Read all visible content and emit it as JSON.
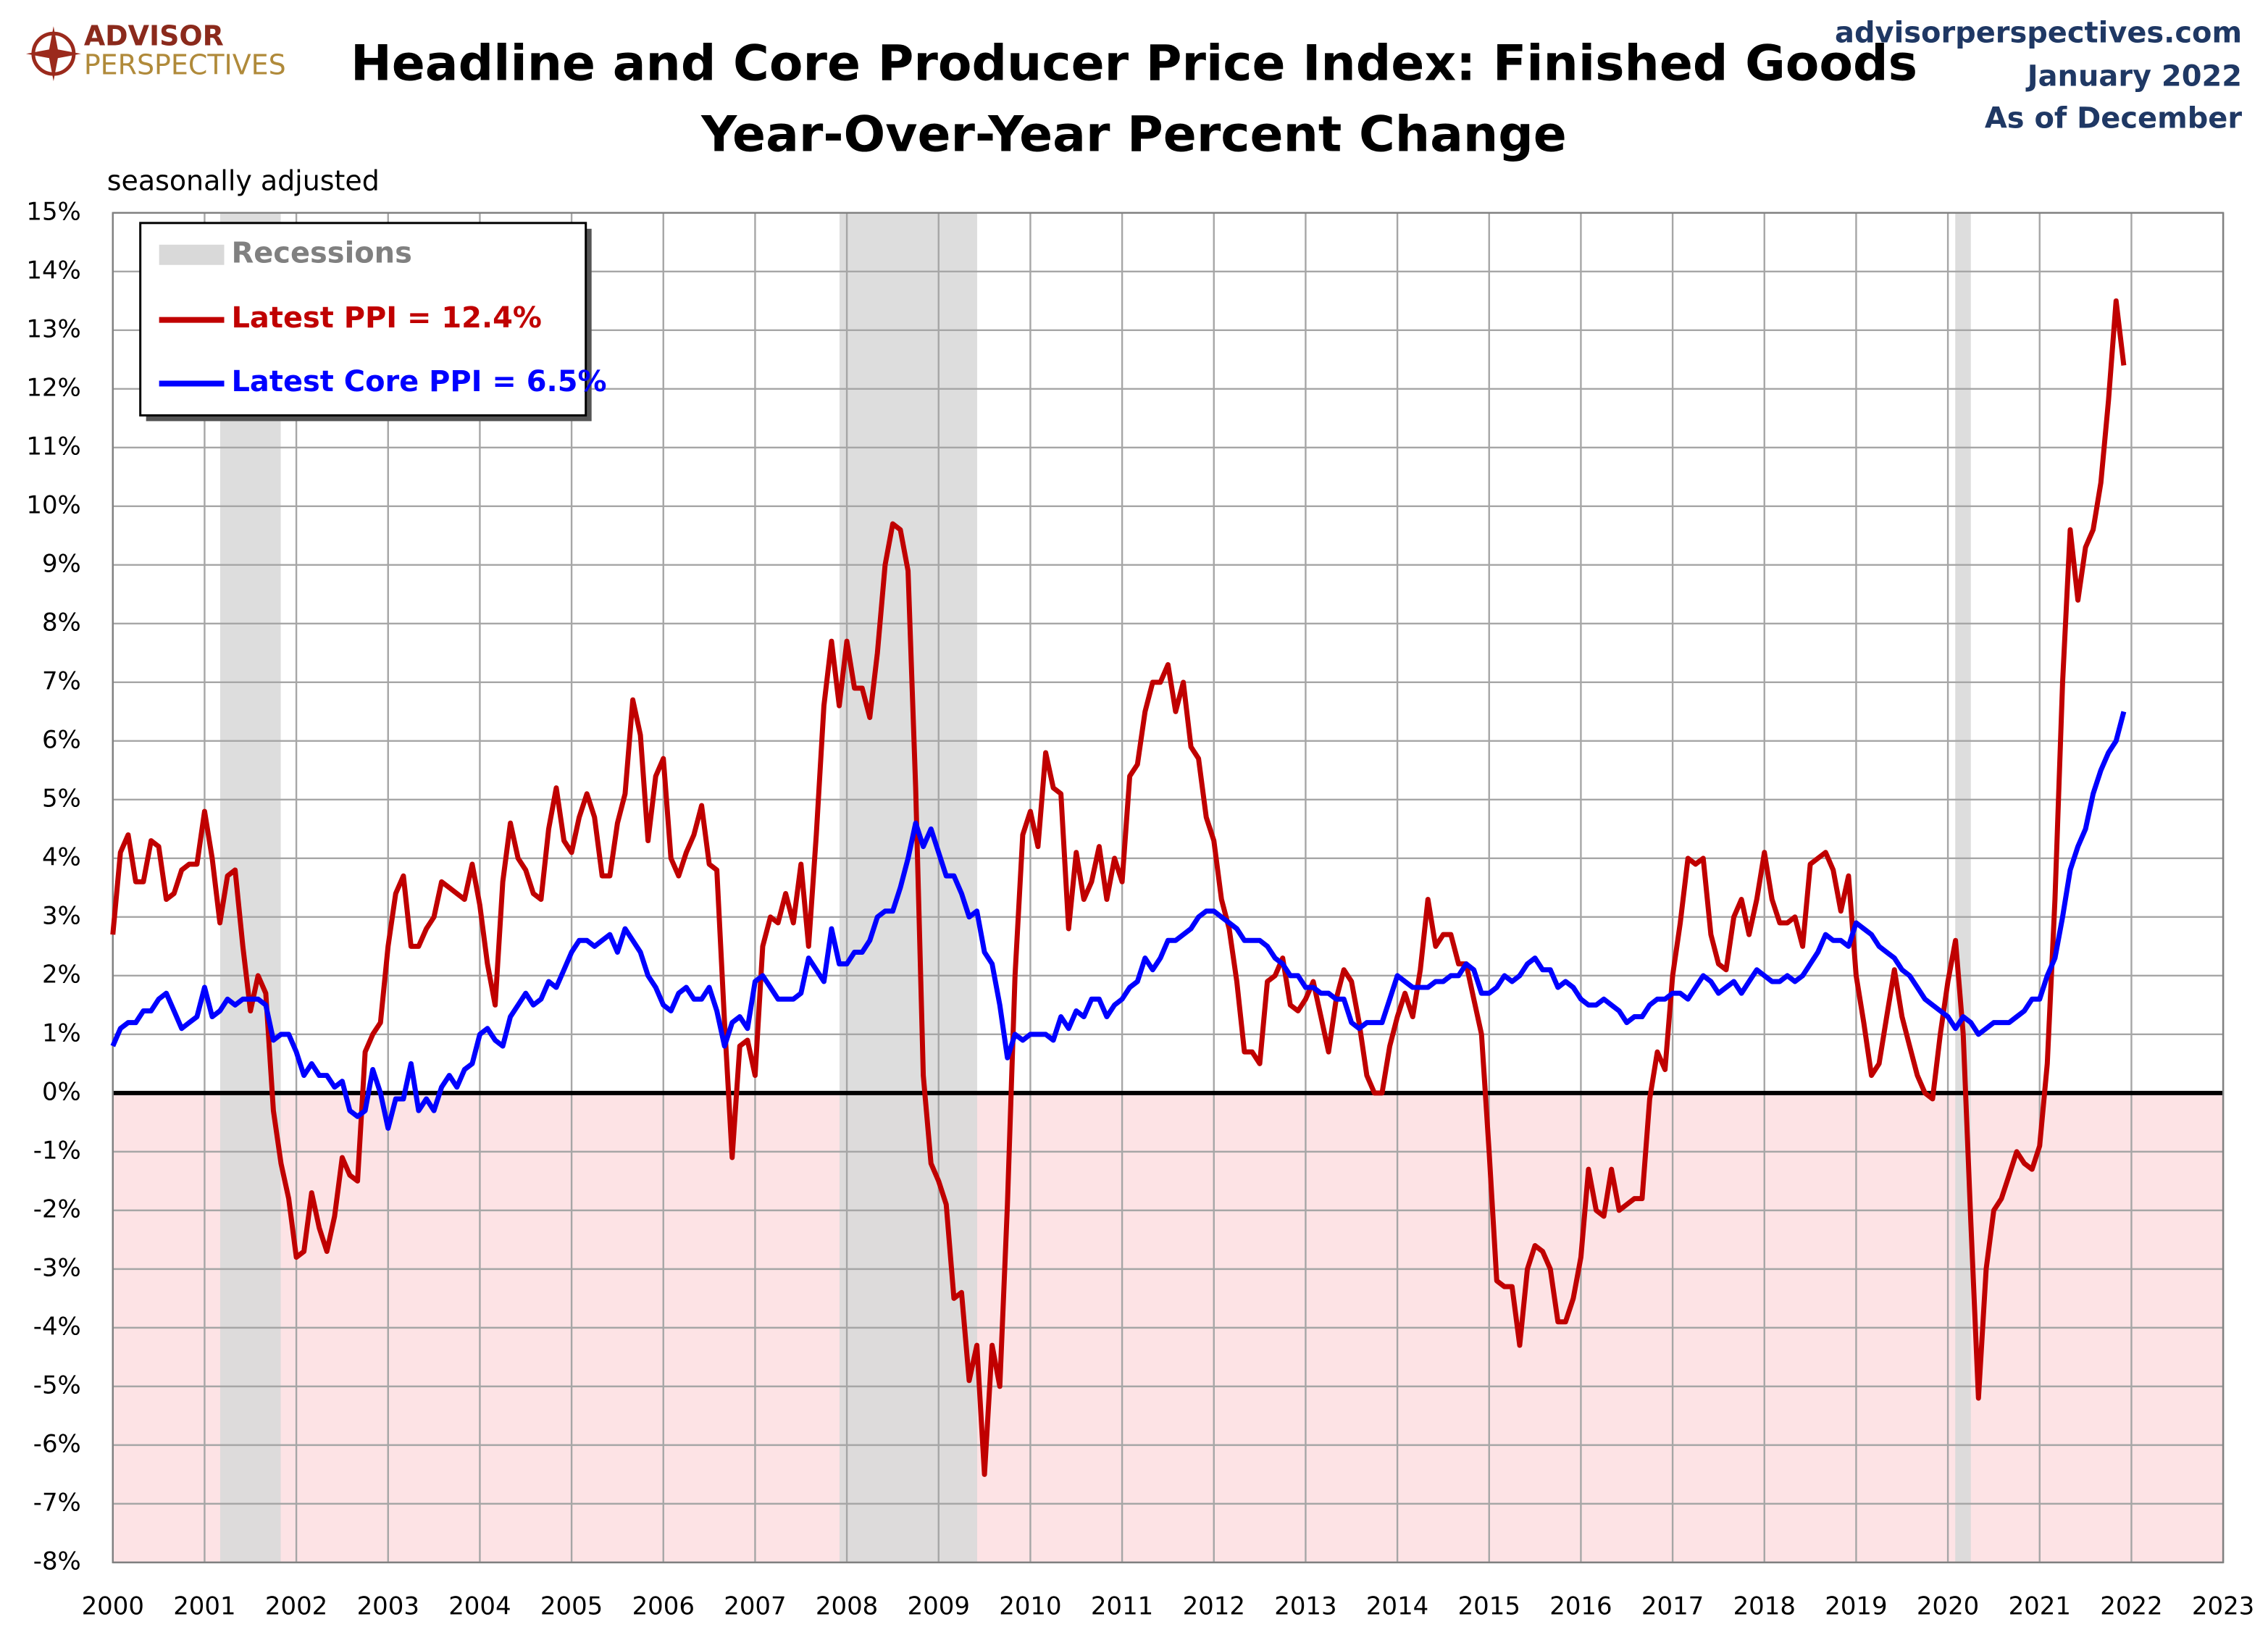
{
  "logo": {
    "line1": "ADVISOR",
    "line2": "PERSPECTIVES"
  },
  "source": [
    "advisorperspectives.com",
    "January 2022",
    "As of December"
  ],
  "chart_data": {
    "type": "line",
    "title": [
      "Headline and Core Producer Price Index: Finished Goods",
      "Year-Over-Year Percent Change"
    ],
    "subtitle": "seasonally adjusted",
    "xlim": [
      2000,
      2023
    ],
    "xticks": [
      2000,
      2001,
      2002,
      2003,
      2004,
      2005,
      2006,
      2007,
      2008,
      2009,
      2010,
      2011,
      2012,
      2013,
      2014,
      2015,
      2016,
      2017,
      2018,
      2019,
      2020,
      2021,
      2022,
      2023
    ],
    "ylim": [
      -8,
      15
    ],
    "yticks": [
      {
        "value": -8,
        "label": "-8%"
      },
      {
        "value": -7,
        "label": "-7%"
      },
      {
        "value": -6,
        "label": "-6%"
      },
      {
        "value": -5,
        "label": "-5%"
      },
      {
        "value": -4,
        "label": "-4%"
      },
      {
        "value": -3,
        "label": "-3%"
      },
      {
        "value": -2,
        "label": "-2%"
      },
      {
        "value": -1,
        "label": "-1%"
      },
      {
        "value": 0,
        "label": "0%"
      },
      {
        "value": 1,
        "label": "1%"
      },
      {
        "value": 2,
        "label": "2%"
      },
      {
        "value": 3,
        "label": "3%"
      },
      {
        "value": 4,
        "label": "4%"
      },
      {
        "value": 5,
        "label": "5%"
      },
      {
        "value": 6,
        "label": "6%"
      },
      {
        "value": 7,
        "label": "7%"
      },
      {
        "value": 8,
        "label": "8%"
      },
      {
        "value": 9,
        "label": "9%"
      },
      {
        "value": 10,
        "label": "10%"
      },
      {
        "value": 11,
        "label": "11%"
      },
      {
        "value": 12,
        "label": "12%"
      },
      {
        "value": 13,
        "label": "13%"
      },
      {
        "value": 14,
        "label": "14%"
      },
      {
        "value": 15,
        "label": "15%"
      }
    ],
    "grid": true,
    "negative_shading_color": "#fde3e5",
    "legend_position": "upper-left",
    "recessions": {
      "name": "Recessions",
      "color": "#d9d9d9",
      "periods": [
        [
          2001.17,
          2001.83
        ],
        [
          2007.92,
          2009.42
        ],
        [
          2020.08,
          2020.25
        ]
      ]
    },
    "x": [
      2000,
      2000.083,
      2000.167,
      2000.25,
      2000.333,
      2000.417,
      2000.5,
      2000.583,
      2000.667,
      2000.75,
      2000.833,
      2000.917,
      2001,
      2001.083,
      2001.167,
      2001.25,
      2001.333,
      2001.417,
      2001.5,
      2001.583,
      2001.667,
      2001.75,
      2001.833,
      2001.917,
      2002,
      2002.083,
      2002.167,
      2002.25,
      2002.333,
      2002.417,
      2002.5,
      2002.583,
      2002.667,
      2002.75,
      2002.833,
      2002.917,
      2003,
      2003.083,
      2003.167,
      2003.25,
      2003.333,
      2003.417,
      2003.5,
      2003.583,
      2003.667,
      2003.75,
      2003.833,
      2003.917,
      2004,
      2004.083,
      2004.167,
      2004.25,
      2004.333,
      2004.417,
      2004.5,
      2004.583,
      2004.667,
      2004.75,
      2004.833,
      2004.917,
      2005,
      2005.083,
      2005.167,
      2005.25,
      2005.333,
      2005.417,
      2005.5,
      2005.583,
      2005.667,
      2005.75,
      2005.833,
      2005.917,
      2006,
      2006.083,
      2006.167,
      2006.25,
      2006.333,
      2006.417,
      2006.5,
      2006.583,
      2006.667,
      2006.75,
      2006.833,
      2006.917,
      2007,
      2007.083,
      2007.167,
      2007.25,
      2007.333,
      2007.417,
      2007.5,
      2007.583,
      2007.667,
      2007.75,
      2007.833,
      2007.917,
      2008,
      2008.083,
      2008.167,
      2008.25,
      2008.333,
      2008.417,
      2008.5,
      2008.583,
      2008.667,
      2008.75,
      2008.833,
      2008.917,
      2009,
      2009.083,
      2009.167,
      2009.25,
      2009.333,
      2009.417,
      2009.5,
      2009.583,
      2009.667,
      2009.75,
      2009.833,
      2009.917,
      2010,
      2010.083,
      2010.167,
      2010.25,
      2010.333,
      2010.417,
      2010.5,
      2010.583,
      2010.667,
      2010.75,
      2010.833,
      2010.917,
      2011,
      2011.083,
      2011.167,
      2011.25,
      2011.333,
      2011.417,
      2011.5,
      2011.583,
      2011.667,
      2011.75,
      2011.833,
      2011.917,
      2012,
      2012.083,
      2012.167,
      2012.25,
      2012.333,
      2012.417,
      2012.5,
      2012.583,
      2012.667,
      2012.75,
      2012.833,
      2012.917,
      2013,
      2013.083,
      2013.167,
      2013.25,
      2013.333,
      2013.417,
      2013.5,
      2013.583,
      2013.667,
      2013.75,
      2013.833,
      2013.917,
      2014,
      2014.083,
      2014.167,
      2014.25,
      2014.333,
      2014.417,
      2014.5,
      2014.583,
      2014.667,
      2014.75,
      2014.833,
      2014.917,
      2015,
      2015.083,
      2015.167,
      2015.25,
      2015.333,
      2015.417,
      2015.5,
      2015.583,
      2015.667,
      2015.75,
      2015.833,
      2015.917,
      2016,
      2016.083,
      2016.167,
      2016.25,
      2016.333,
      2016.417,
      2016.5,
      2016.583,
      2016.667,
      2016.75,
      2016.833,
      2016.917,
      2017,
      2017.083,
      2017.167,
      2017.25,
      2017.333,
      2017.417,
      2017.5,
      2017.583,
      2017.667,
      2017.75,
      2017.833,
      2017.917,
      2018,
      2018.083,
      2018.167,
      2018.25,
      2018.333,
      2018.417,
      2018.5,
      2018.583,
      2018.667,
      2018.75,
      2018.833,
      2018.917,
      2019,
      2019.083,
      2019.167,
      2019.25,
      2019.333,
      2019.417,
      2019.5,
      2019.583,
      2019.667,
      2019.75,
      2019.833,
      2019.917,
      2020,
      2020.083,
      2020.167,
      2020.25,
      2020.333,
      2020.417,
      2020.5,
      2020.583,
      2020.667,
      2020.75,
      2020.833,
      2020.917,
      2021,
      2021.083,
      2021.167,
      2021.25,
      2021.333,
      2021.417,
      2021.5,
      2021.583,
      2021.667,
      2021.75,
      2021.833,
      2021.917
    ],
    "series": [
      {
        "name": "Latest PPI = 12.4%",
        "color": "#c00000",
        "values": [
          2.7,
          4.1,
          4.4,
          3.6,
          3.6,
          4.3,
          4.2,
          3.3,
          3.4,
          3.8,
          3.9,
          3.9,
          4.8,
          4.0,
          2.9,
          3.7,
          3.8,
          2.5,
          1.4,
          2.0,
          1.7,
          -0.3,
          -1.2,
          -1.8,
          -2.8,
          -2.7,
          -1.7,
          -2.3,
          -2.7,
          -2.1,
          -1.1,
          -1.4,
          -1.5,
          0.7,
          1.0,
          1.2,
          2.5,
          3.4,
          3.7,
          2.5,
          2.5,
          2.8,
          3.0,
          3.6,
          3.5,
          3.4,
          3.3,
          3.9,
          3.2,
          2.2,
          1.5,
          3.6,
          4.6,
          4.0,
          3.8,
          3.4,
          3.3,
          4.5,
          5.2,
          4.3,
          4.1,
          4.7,
          5.1,
          4.7,
          3.7,
          3.7,
          4.6,
          5.1,
          6.7,
          6.1,
          4.3,
          5.4,
          5.7,
          4.0,
          3.7,
          4.1,
          4.4,
          4.9,
          3.9,
          3.8,
          1.2,
          -1.1,
          0.8,
          0.9,
          0.3,
          2.5,
          3.0,
          2.9,
          3.4,
          2.9,
          3.9,
          2.5,
          4.4,
          6.6,
          7.7,
          6.6,
          7.7,
          6.9,
          6.9,
          6.4,
          7.5,
          9.0,
          9.7,
          9.6,
          8.9,
          5.2,
          0.3,
          -1.2,
          -1.5,
          -1.9,
          -3.5,
          -3.4,
          -4.9,
          -4.3,
          -6.5,
          -4.3,
          -5.0,
          -1.9,
          2.0,
          4.4,
          4.8,
          4.2,
          5.8,
          5.2,
          5.1,
          2.8,
          4.1,
          3.3,
          3.6,
          4.2,
          3.3,
          4.0,
          3.6,
          5.4,
          5.6,
          6.5,
          7.0,
          7.0,
          7.3,
          6.5,
          7.0,
          5.9,
          5.7,
          4.7,
          4.3,
          3.3,
          2.8,
          1.9,
          0.7,
          0.7,
          0.5,
          1.9,
          2.0,
          2.3,
          1.5,
          1.4,
          1.6,
          1.9,
          1.3,
          0.7,
          1.6,
          2.1,
          1.9,
          1.2,
          0.3,
          0.0,
          0.0,
          0.8,
          1.3,
          1.7,
          1.3,
          2.1,
          3.3,
          2.5,
          2.7,
          2.7,
          2.2,
          2.2,
          1.6,
          1.0,
          -1.0,
          -3.2,
          -3.3,
          -3.3,
          -4.3,
          -3.0,
          -2.6,
          -2.7,
          -3.0,
          -3.9,
          -3.9,
          -3.5,
          -2.8,
          -1.3,
          -2.0,
          -2.1,
          -1.3,
          -2.0,
          -1.9,
          -1.8,
          -1.8,
          -0.1,
          0.7,
          0.4,
          2.0,
          2.9,
          4.0,
          3.9,
          4.0,
          2.7,
          2.2,
          2.1,
          3.0,
          3.3,
          2.7,
          3.3,
          4.1,
          3.3,
          2.9,
          2.9,
          3.0,
          2.5,
          3.9,
          4.0,
          4.1,
          3.8,
          3.1,
          3.7,
          2.0,
          1.2,
          0.3,
          0.5,
          1.3,
          2.1,
          1.3,
          0.8,
          0.3,
          0.0,
          -0.1,
          1.0,
          1.9,
          2.6,
          1.0,
          -2.2,
          -5.2,
          -3.0,
          -2.0,
          -1.8,
          -1.4,
          -1.0,
          -1.2,
          -1.3,
          -0.9,
          0.5,
          3.3,
          7.0,
          9.6,
          8.4,
          9.3,
          9.6,
          10.4,
          11.8,
          13.5,
          12.4
        ]
      },
      {
        "name": "Latest Core PPI = 6.5%",
        "color": "#0000ff",
        "values": [
          0.8,
          1.1,
          1.2,
          1.2,
          1.4,
          1.4,
          1.6,
          1.7,
          1.4,
          1.1,
          1.2,
          1.3,
          1.8,
          1.3,
          1.4,
          1.6,
          1.5,
          1.6,
          1.6,
          1.6,
          1.5,
          0.9,
          1.0,
          1.0,
          0.7,
          0.3,
          0.5,
          0.3,
          0.3,
          0.1,
          0.2,
          -0.3,
          -0.4,
          -0.3,
          0.4,
          0.0,
          -0.6,
          -0.1,
          -0.1,
          0.5,
          -0.3,
          -0.1,
          -0.3,
          0.1,
          0.3,
          0.1,
          0.4,
          0.5,
          1.0,
          1.1,
          0.9,
          0.8,
          1.3,
          1.5,
          1.7,
          1.5,
          1.6,
          1.9,
          1.8,
          2.1,
          2.4,
          2.6,
          2.6,
          2.5,
          2.6,
          2.7,
          2.4,
          2.8,
          2.6,
          2.4,
          2.0,
          1.8,
          1.5,
          1.4,
          1.7,
          1.8,
          1.6,
          1.6,
          1.8,
          1.4,
          0.8,
          1.2,
          1.3,
          1.1,
          1.9,
          2.0,
          1.8,
          1.6,
          1.6,
          1.6,
          1.7,
          2.3,
          2.1,
          1.9,
          2.8,
          2.2,
          2.2,
          2.4,
          2.4,
          2.6,
          3.0,
          3.1,
          3.1,
          3.5,
          4.0,
          4.6,
          4.2,
          4.5,
          4.1,
          3.7,
          3.7,
          3.4,
          3.0,
          3.1,
          2.4,
          2.2,
          1.5,
          0.6,
          1.0,
          0.9,
          1.0,
          1.0,
          1.0,
          0.9,
          1.3,
          1.1,
          1.4,
          1.3,
          1.6,
          1.6,
          1.3,
          1.5,
          1.6,
          1.8,
          1.9,
          2.3,
          2.1,
          2.3,
          2.6,
          2.6,
          2.7,
          2.8,
          3.0,
          3.1,
          3.1,
          3.0,
          2.9,
          2.8,
          2.6,
          2.6,
          2.6,
          2.5,
          2.3,
          2.2,
          2.0,
          2.0,
          1.8,
          1.8,
          1.7,
          1.7,
          1.6,
          1.6,
          1.2,
          1.1,
          1.2,
          1.2,
          1.2,
          1.6,
          2.0,
          1.9,
          1.8,
          1.8,
          1.8,
          1.9,
          1.9,
          2.0,
          2.0,
          2.2,
          2.1,
          1.7,
          1.7,
          1.8,
          2.0,
          1.9,
          2.0,
          2.2,
          2.3,
          2.1,
          2.1,
          1.8,
          1.9,
          1.8,
          1.6,
          1.5,
          1.5,
          1.6,
          1.5,
          1.4,
          1.2,
          1.3,
          1.3,
          1.5,
          1.6,
          1.6,
          1.7,
          1.7,
          1.6,
          1.8,
          2.0,
          1.9,
          1.7,
          1.8,
          1.9,
          1.7,
          1.9,
          2.1,
          2.0,
          1.9,
          1.9,
          2.0,
          1.9,
          2.0,
          2.2,
          2.4,
          2.7,
          2.6,
          2.6,
          2.5,
          2.9,
          2.8,
          2.7,
          2.5,
          2.4,
          2.3,
          2.1,
          2.0,
          1.8,
          1.6,
          1.5,
          1.4,
          1.3,
          1.1,
          1.3,
          1.2,
          1.0,
          1.1,
          1.2,
          1.2,
          1.2,
          1.3,
          1.4,
          1.6,
          1.6,
          2.0,
          2.3,
          3.0,
          3.8,
          4.2,
          4.5,
          5.1,
          5.5,
          5.8,
          6.0,
          6.5
        ]
      }
    ]
  }
}
